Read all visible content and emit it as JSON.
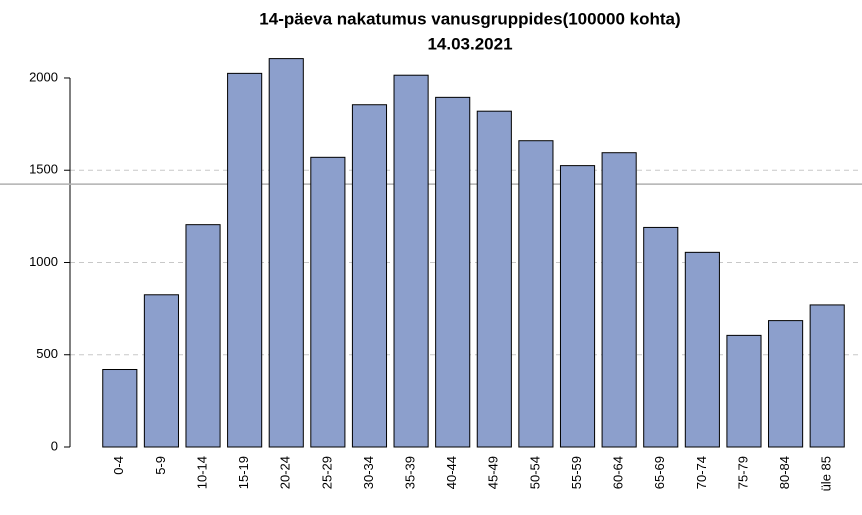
{
  "chart_data": {
    "type": "bar",
    "title": "14-päeva nakatumus vanusgruppides(100000 kohta)",
    "subtitle": "14.03.2021",
    "categories": [
      "0-4",
      "5-9",
      "10-14",
      "15-19",
      "20-24",
      "25-29",
      "30-34",
      "35-39",
      "40-44",
      "45-49",
      "50-54",
      "55-59",
      "60-64",
      "65-69",
      "70-74",
      "75-79",
      "80-84",
      "üle 85"
    ],
    "values": [
      420,
      825,
      1205,
      2025,
      2105,
      1570,
      1855,
      2015,
      1895,
      1820,
      1660,
      1525,
      1595,
      1190,
      1055,
      605,
      685,
      770
    ],
    "color": "#8c9fcc",
    "reference_line": 1425,
    "ylim": [
      0,
      2150
    ],
    "yticks": [
      0,
      500,
      1000,
      1500,
      2000
    ],
    "grid": true
  }
}
